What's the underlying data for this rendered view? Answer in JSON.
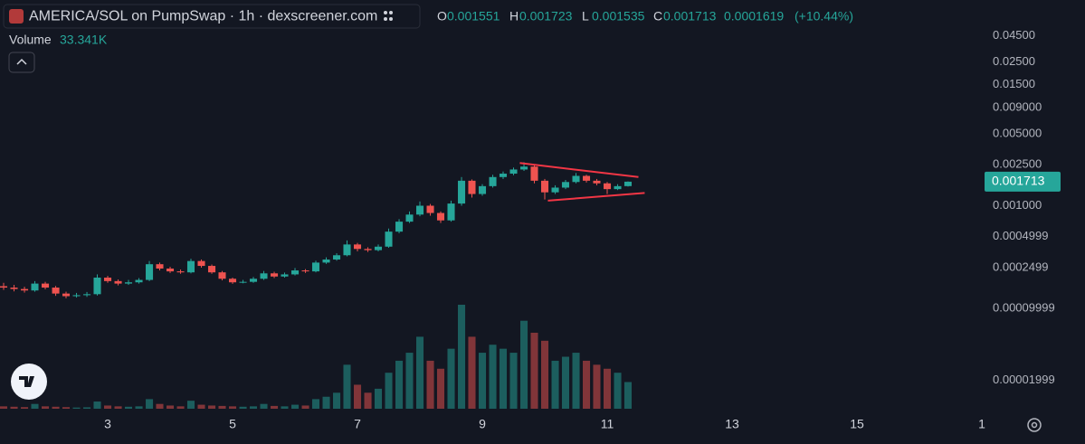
{
  "chart_data": {
    "type": "candlestick",
    "title": "AMERICA/SOL on PumpSwap · 1h · dexscreener.com",
    "ohlc_letters": [
      "O",
      "H",
      "L",
      "C"
    ],
    "change": {
      "value": 0.0001619,
      "percent": 10.44,
      "percent_label": "(+10.44%)"
    },
    "log": true,
    "grid": false,
    "up_color": "#26a69a",
    "down_color": "#ef5350",
    "xlim": [
      1.275,
      17.0
    ],
    "xticks": [
      3,
      5,
      7,
      9,
      11,
      13,
      15,
      {
        "value": 17,
        "label": "1"
      }
    ],
    "ylim": [
      1e-05,
      0.1
    ],
    "yticks": [
      {
        "value": 0.045,
        "label": "0.04500"
      },
      {
        "value": 0.025,
        "label": "0.02500"
      },
      {
        "value": 0.015,
        "label": "0.01500"
      },
      {
        "value": 0.009,
        "label": "0.009000"
      },
      {
        "value": 0.005,
        "label": "0.005000"
      },
      {
        "value": 0.0025,
        "label": "0.002500"
      },
      {
        "value": 0.001,
        "label": "0.001000"
      },
      0.0004999,
      0.0002499,
      9.999e-05,
      1.999e-05
    ],
    "x": [
      1.333,
      1.5,
      1.667,
      1.833,
      2,
      2.167,
      2.333,
      2.5,
      2.667,
      2.833,
      3,
      3.167,
      3.333,
      3.5,
      3.667,
      3.833,
      4,
      4.167,
      4.333,
      4.5,
      4.667,
      4.833,
      5,
      5.167,
      5.333,
      5.5,
      5.667,
      5.833,
      6,
      6.167,
      6.333,
      6.5,
      6.667,
      6.833,
      7,
      7.167,
      7.333,
      7.5,
      7.667,
      7.833,
      8,
      8.167,
      8.333,
      8.5,
      8.667,
      8.833,
      9,
      9.167,
      9.333,
      9.5,
      9.667,
      9.833,
      10,
      10.167,
      10.333,
      10.5,
      10.667,
      10.833,
      11,
      11.167,
      11.333
    ],
    "open": [
      0.000165,
      0.00016,
      0.000155,
      0.00015,
      0.000175,
      0.00016,
      0.00014,
      0.000132,
      0.000135,
      0.000138,
      0.0002,
      0.000185,
      0.000175,
      0.00018,
      0.00019,
      0.00027,
      0.000245,
      0.00023,
      0.000225,
      0.00029,
      0.00026,
      0.000225,
      0.000195,
      0.00018,
      0.000182,
      0.000195,
      0.00022,
      0.000205,
      0.000215,
      0.000235,
      0.00023,
      0.00028,
      0.0003,
      0.00033,
      0.00042,
      0.00038,
      0.00037,
      0.0004,
      0.00056,
      0.0007,
      0.00082,
      0.001,
      0.00085,
      0.00072,
      0.00105,
      0.00175,
      0.0013,
      0.00155,
      0.0019,
      0.00205,
      0.00225,
      0.0024,
      0.00175,
      0.00135,
      0.0015,
      0.0017,
      0.00195,
      0.00175,
      0.00165,
      0.00145,
      0.001551
    ],
    "high": [
      0.000178,
      0.00017,
      0.000163,
      0.000185,
      0.000182,
      0.000166,
      0.000146,
      0.000142,
      0.000145,
      0.000215,
      0.000208,
      0.000192,
      0.00019,
      0.000198,
      0.00029,
      0.00028,
      0.000255,
      0.00024,
      0.000305,
      0.0003,
      0.000268,
      0.000232,
      0.0002,
      0.00019,
      0.000203,
      0.000232,
      0.000228,
      0.000224,
      0.000248,
      0.000242,
      0.000292,
      0.000315,
      0.000345,
      0.00046,
      0.000435,
      0.000395,
      0.00042,
      0.0006,
      0.00074,
      0.00088,
      0.0011,
      0.00104,
      0.00088,
      0.00112,
      0.0019,
      0.0018,
      0.00162,
      0.002,
      0.00215,
      0.00235,
      0.00265,
      0.00248,
      0.00182,
      0.00158,
      0.00178,
      0.00208,
      0.002,
      0.00182,
      0.0017,
      0.00162,
      0.001723
    ],
    "low": [
      0.000152,
      0.000147,
      0.000143,
      0.000146,
      0.000154,
      0.000133,
      0.000126,
      0.000128,
      0.00013,
      0.000134,
      0.000178,
      0.000168,
      0.00017,
      0.000175,
      0.000185,
      0.000235,
      0.000222,
      0.000218,
      0.00022,
      0.00025,
      0.000218,
      0.000188,
      0.000174,
      0.000176,
      0.000178,
      0.00019,
      0.000198,
      0.0002,
      0.00021,
      0.000222,
      0.000225,
      0.000272,
      0.000292,
      0.000322,
      0.00036,
      0.000355,
      0.00036,
      0.00039,
      0.00054,
      0.00068,
      0.00079,
      0.0008,
      0.00068,
      0.0007,
      0.001,
      0.0012,
      0.00125,
      0.0015,
      0.00182,
      0.00198,
      0.00218,
      0.00165,
      0.00115,
      0.0013,
      0.00145,
      0.00165,
      0.00168,
      0.00158,
      0.0013,
      0.00142,
      0.001535
    ],
    "close": [
      0.00016,
      0.000155,
      0.00015,
      0.000175,
      0.00016,
      0.00014,
      0.000132,
      0.000135,
      0.000138,
      0.0002,
      0.000185,
      0.000175,
      0.00018,
      0.00019,
      0.00027,
      0.000245,
      0.00023,
      0.000225,
      0.00029,
      0.00026,
      0.000225,
      0.000195,
      0.00018,
      0.000182,
      0.000195,
      0.00022,
      0.000205,
      0.000215,
      0.000235,
      0.00023,
      0.00028,
      0.0003,
      0.00033,
      0.00042,
      0.00038,
      0.00037,
      0.0004,
      0.00056,
      0.0007,
      0.00082,
      0.001,
      0.00085,
      0.00072,
      0.00105,
      0.00175,
      0.0013,
      0.00155,
      0.0019,
      0.00205,
      0.00225,
      0.0024,
      0.00175,
      0.00135,
      0.0015,
      0.0017,
      0.00195,
      0.00175,
      0.00165,
      0.00145,
      0.00155,
      0.001713
    ],
    "volume": {
      "name": "Volume",
      "last_label": "33.341K",
      "values": [
        3000,
        2500,
        2000,
        6000,
        3000,
        2500,
        2000,
        1500,
        1800,
        9000,
        4000,
        3000,
        2500,
        3000,
        12000,
        6000,
        4000,
        3000,
        10000,
        5000,
        4000,
        3500,
        3000,
        2500,
        3000,
        6000,
        3500,
        3000,
        5000,
        4000,
        12000,
        15000,
        20000,
        55000,
        30000,
        20000,
        25000,
        45000,
        60000,
        70000,
        90000,
        60000,
        50000,
        75000,
        130000,
        90000,
        70000,
        80000,
        75000,
        70000,
        110000,
        95000,
        85000,
        60000,
        65000,
        70000,
        60000,
        55000,
        50000,
        45000,
        33341
      ]
    },
    "trendlines": [
      {
        "color": "#f23645",
        "x": [
          9.6,
          11.5
        ],
        "y": [
          0.0026,
          0.0019
        ]
      },
      {
        "color": "#f23645",
        "x": [
          10.05,
          11.6
        ],
        "y": [
          0.00112,
          0.00133
        ]
      }
    ]
  }
}
